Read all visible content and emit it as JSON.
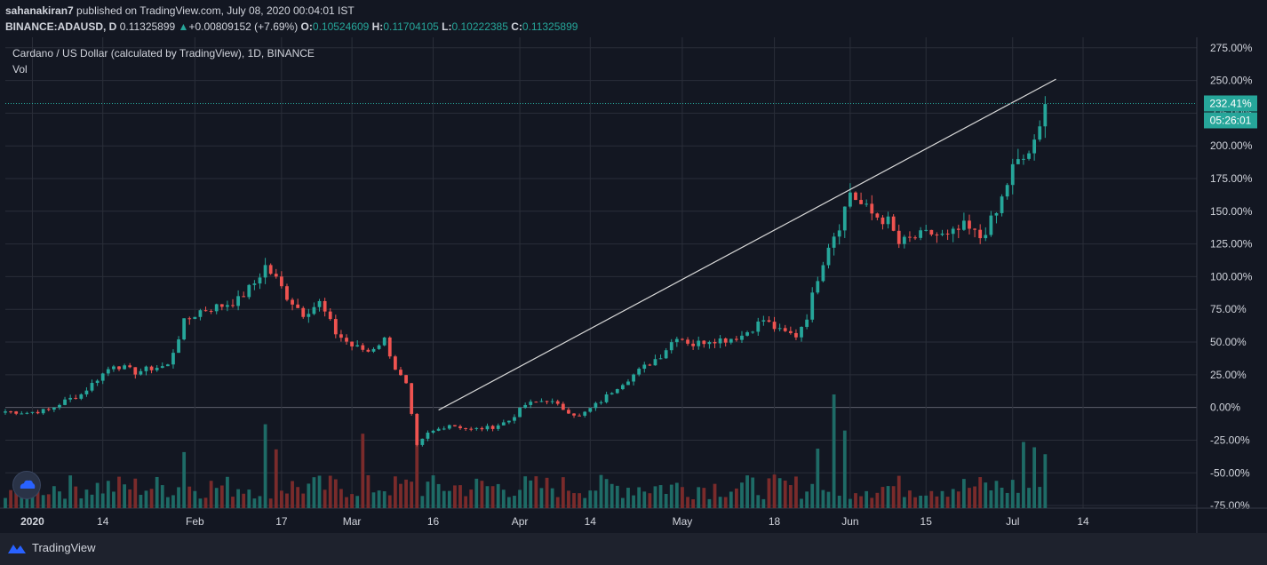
{
  "header": {
    "author": "sahanakiran7",
    "published_text": " published on TradingView.com, July 08, 2020 00:04:01 IST",
    "symbol": "BINANCE:ADAUSD, D",
    "last_price": "0.11325899",
    "change_arrow": "▲",
    "change": "+0.00809152 (+7.69%)",
    "o_label": "O:",
    "o_value": "0.10524609",
    "h_label": "H:",
    "h_value": "0.11704105",
    "l_label": "L:",
    "l_value": "0.10222385",
    "c_label": "C:",
    "c_value": "0.11325899"
  },
  "legend": {
    "title": "Cardano / US Dollar (calculated by TradingView), 1D, BINANCE",
    "vol_label": "Vol"
  },
  "badges": {
    "last_percent": "232.41%",
    "countdown": "05:26:01"
  },
  "footer": {
    "brand": "TradingView"
  },
  "colors": {
    "up": "#26a69a",
    "down": "#ef5350",
    "vol_up": "#1e6b66",
    "vol_down": "#7a2b2b",
    "grid": "#2a2e39",
    "bg": "#131722",
    "trendline": "#d8d8d8"
  },
  "chart_data": {
    "type": "candlestick",
    "title": "Cardano / US Dollar (calculated by TradingView), 1D, BINANCE",
    "y_scale": "percent",
    "ylim": [
      -77,
      283
    ],
    "y_ticks": [
      "275.00%",
      "250.00%",
      "225.00%",
      "200.00%",
      "175.00%",
      "150.00%",
      "125.00%",
      "100.00%",
      "75.00%",
      "50.00%",
      "25.00%",
      "0.00%",
      "-25.00%",
      "-50.00%",
      "-75.00%"
    ],
    "y_tick_values": [
      275,
      250,
      225,
      200,
      175,
      150,
      125,
      100,
      75,
      50,
      25,
      0,
      -25,
      -50,
      -75
    ],
    "x_range_days": [
      0,
      220
    ],
    "x_ticks": [
      {
        "label": "2020",
        "day": 5
      },
      {
        "label": "14",
        "day": 18
      },
      {
        "label": "Feb",
        "day": 35
      },
      {
        "label": "17",
        "day": 51
      },
      {
        "label": "Mar",
        "day": 64
      },
      {
        "label": "16",
        "day": 79
      },
      {
        "label": "Apr",
        "day": 95
      },
      {
        "label": "14",
        "day": 108
      },
      {
        "label": "May",
        "day": 125
      },
      {
        "label": "18",
        "day": 142
      },
      {
        "label": "Jun",
        "day": 156
      },
      {
        "label": "15",
        "day": 170
      },
      {
        "label": "Jul",
        "day": 186
      },
      {
        "label": "14",
        "day": 199
      }
    ],
    "anchors": [
      [
        0,
        -3
      ],
      [
        4,
        -4
      ],
      [
        8,
        -2
      ],
      [
        11,
        5
      ],
      [
        14,
        10
      ],
      [
        17,
        22
      ],
      [
        20,
        33
      ],
      [
        24,
        27
      ],
      [
        27,
        30
      ],
      [
        30,
        32
      ],
      [
        33,
        65
      ],
      [
        36,
        74
      ],
      [
        40,
        78
      ],
      [
        43,
        82
      ],
      [
        46,
        95
      ],
      [
        48,
        108
      ],
      [
        50,
        98
      ],
      [
        52,
        85
      ],
      [
        55,
        72
      ],
      [
        58,
        80
      ],
      [
        61,
        57
      ],
      [
        64,
        47
      ],
      [
        67,
        43
      ],
      [
        70,
        52
      ],
      [
        72,
        30
      ],
      [
        74,
        17
      ],
      [
        76,
        -30
      ],
      [
        78,
        -20
      ],
      [
        82,
        -13
      ],
      [
        86,
        -17
      ],
      [
        90,
        -15
      ],
      [
        93,
        -10
      ],
      [
        96,
        2
      ],
      [
        100,
        6
      ],
      [
        103,
        -1
      ],
      [
        106,
        -7
      ],
      [
        110,
        5
      ],
      [
        113,
        16
      ],
      [
        117,
        28
      ],
      [
        121,
        40
      ],
      [
        124,
        55
      ],
      [
        127,
        48
      ],
      [
        130,
        52
      ],
      [
        133,
        52
      ],
      [
        136,
        55
      ],
      [
        140,
        67
      ],
      [
        143,
        58
      ],
      [
        146,
        55
      ],
      [
        148,
        70
      ],
      [
        150,
        100
      ],
      [
        152,
        125
      ],
      [
        154,
        140
      ],
      [
        156,
        165
      ],
      [
        158,
        155
      ],
      [
        160,
        148
      ],
      [
        163,
        142
      ],
      [
        165,
        125
      ],
      [
        168,
        130
      ],
      [
        171,
        133
      ],
      [
        174,
        130
      ],
      [
        177,
        138
      ],
      [
        180,
        130
      ],
      [
        183,
        148
      ],
      [
        186,
        183
      ],
      [
        188,
        190
      ],
      [
        190,
        200
      ],
      [
        191,
        212
      ],
      [
        192,
        232
      ]
    ],
    "price_line_value": 232.41,
    "trendline": {
      "from_day": 80,
      "from_value": -2,
      "to_day": 194,
      "to_value": 251
    },
    "series": [
      {
        "name": "Vol",
        "type": "volume"
      }
    ]
  }
}
